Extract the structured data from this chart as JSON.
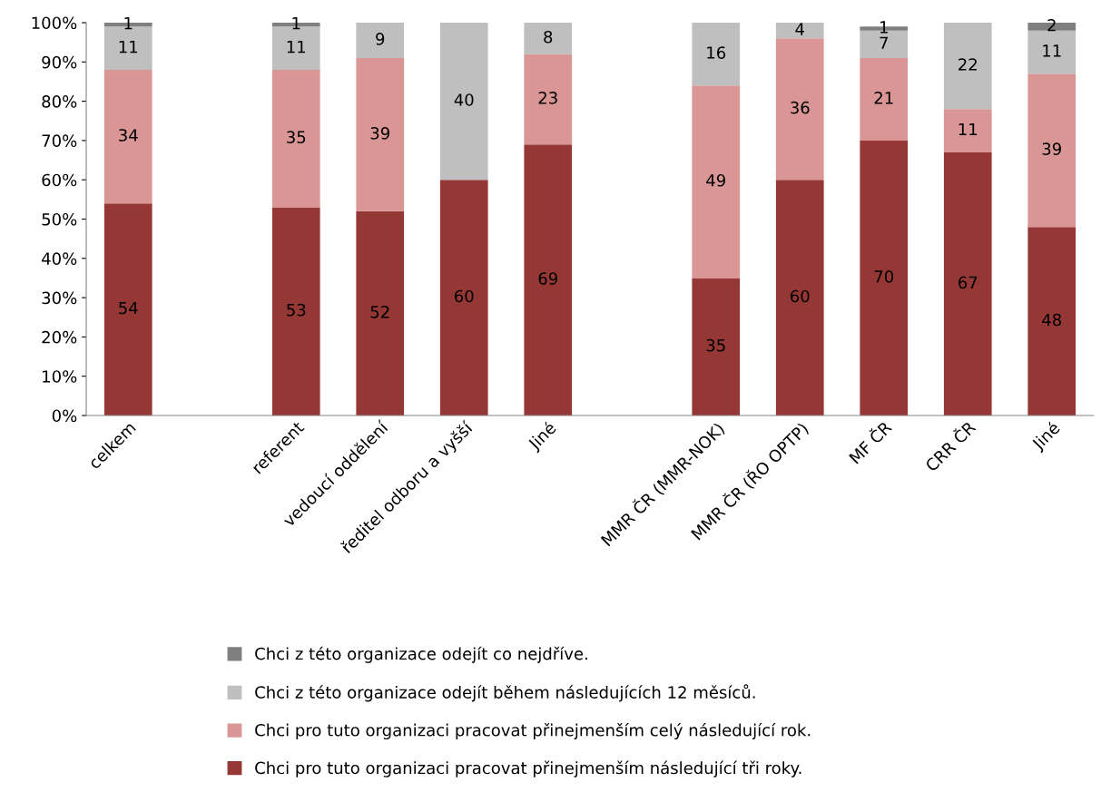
{
  "chart_data": {
    "type": "bar",
    "stacked": true,
    "data_labels": true,
    "grid": false,
    "legend": "bottom",
    "categories": [
      "celkem",
      null,
      "referent",
      "vedoucí oddělení",
      "ředitel odboru a vyšší",
      "Jiné",
      null,
      "MMR ČR (MMR-NOK)",
      "MMR ČR (ŘO OPTP)",
      "MF ČR",
      "CRR ČR",
      "Jiné"
    ],
    "ylim": [
      0,
      100
    ],
    "yticks": [
      {
        "value": 0,
        "label": "0%"
      },
      {
        "value": 10,
        "label": "10%"
      },
      {
        "value": 20,
        "label": "20%"
      },
      {
        "value": 30,
        "label": "30%"
      },
      {
        "value": 40,
        "label": "40%"
      },
      {
        "value": 50,
        "label": "50%"
      },
      {
        "value": 60,
        "label": "60%"
      },
      {
        "value": 70,
        "label": "70%"
      },
      {
        "value": 80,
        "label": "80%"
      },
      {
        "value": 90,
        "label": "90%"
      },
      {
        "value": 100,
        "label": "100%"
      }
    ],
    "series": [
      {
        "name": "Chci pro tuto organizaci pracovat přinejmenším následující tři roky.",
        "color": "#953735",
        "values": [
          54,
          null,
          53,
          52,
          60,
          69,
          null,
          35,
          60,
          70,
          67,
          48
        ]
      },
      {
        "name": "Chci pro tuto organizaci pracovat přinejmenším celý následující rok.",
        "color": "#d99694",
        "values": [
          34,
          null,
          35,
          39,
          null,
          23,
          null,
          49,
          36,
          21,
          11,
          39
        ]
      },
      {
        "name": "Chci z této organizace odejít během následujících 12 měsíců.",
        "color": "#bfbfbf",
        "values": [
          11,
          null,
          11,
          9,
          40,
          8,
          null,
          16,
          4,
          7,
          22,
          11
        ]
      },
      {
        "name": "Chci z této organizace odejít co nejdříve.",
        "color": "#7f7f7f",
        "values": [
          1,
          null,
          1,
          null,
          null,
          null,
          null,
          null,
          null,
          1,
          null,
          2
        ]
      }
    ]
  }
}
